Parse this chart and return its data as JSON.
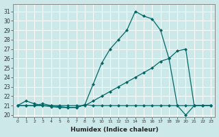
{
  "xlabel": "Humidex (Indice chaleur)",
  "bg_color": "#cce8e8",
  "grid_color": "#b0d8d8",
  "line_color": "#006666",
  "xlim": [
    -0.5,
    23.5
  ],
  "ylim": [
    19.8,
    31.8
  ],
  "yticks": [
    20,
    21,
    22,
    23,
    24,
    25,
    26,
    27,
    28,
    29,
    30,
    31
  ],
  "xticks": [
    0,
    1,
    2,
    3,
    4,
    5,
    6,
    7,
    8,
    9,
    10,
    11,
    12,
    13,
    14,
    15,
    16,
    17,
    18,
    19,
    20,
    21,
    22,
    23
  ],
  "line1_x": [
    0,
    1,
    2,
    3,
    4,
    5,
    6,
    7,
    8,
    9,
    10,
    11,
    12,
    13,
    14,
    15,
    16,
    17,
    18,
    19,
    20,
    21,
    22,
    23
  ],
  "line1_y": [
    21.0,
    21.5,
    21.2,
    21.0,
    20.9,
    20.8,
    20.8,
    20.8,
    21.1,
    23.3,
    25.5,
    27.0,
    28.0,
    29.0,
    31.0,
    30.5,
    30.2,
    29.0,
    26.0,
    21.0,
    20.0,
    21.0,
    21.0,
    21.0
  ],
  "line2_x": [
    0,
    1,
    2,
    3,
    4,
    5,
    6,
    7,
    8,
    9,
    10,
    11,
    12,
    13,
    14,
    15,
    16,
    17,
    18,
    19,
    20,
    21,
    22,
    23
  ],
  "line2_y": [
    21.0,
    21.0,
    21.0,
    21.2,
    21.0,
    20.9,
    20.8,
    20.8,
    21.1,
    21.0,
    21.0,
    21.0,
    21.0,
    21.0,
    21.0,
    21.0,
    21.0,
    21.0,
    21.0,
    21.0,
    21.0,
    21.0,
    21.0,
    21.0
  ],
  "line3_x": [
    0,
    1,
    2,
    3,
    4,
    5,
    6,
    7,
    8,
    9,
    10,
    11,
    12,
    13,
    14,
    15,
    16,
    17,
    18,
    19,
    20,
    21,
    22,
    23
  ],
  "line3_y": [
    21.0,
    21.0,
    21.0,
    21.0,
    21.0,
    21.0,
    21.0,
    21.0,
    21.0,
    21.5,
    22.0,
    22.5,
    23.0,
    23.5,
    24.0,
    24.5,
    25.0,
    25.7,
    26.0,
    26.8,
    27.0,
    21.0,
    21.0,
    21.0
  ]
}
